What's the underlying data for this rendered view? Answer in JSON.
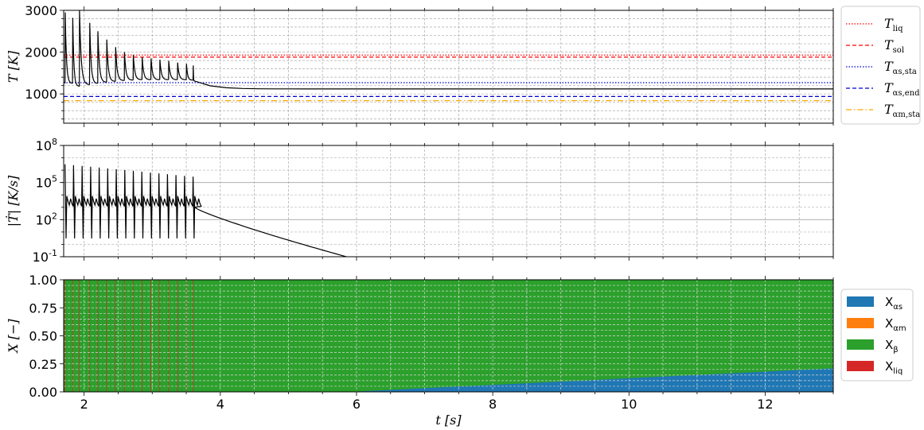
{
  "chart_data": [
    {
      "type": "line",
      "ylabel": "T [K]",
      "ylim": [
        300,
        3000
      ],
      "yscale": "linear",
      "xlim": [
        1.7,
        13.0
      ],
      "yticks": [
        {
          "v": 1000,
          "label": "1000"
        },
        {
          "v": 2000,
          "label": "2000"
        },
        {
          "v": 3000,
          "label": "3000"
        }
      ],
      "grid": true,
      "legend_position": "right",
      "hlines": [
        {
          "name": "T_liq",
          "label": "T_liq",
          "value": 1930,
          "color": "#ff0000",
          "style": "dotted"
        },
        {
          "name": "T_sol",
          "label": "T_sol",
          "value": 1880,
          "color": "#ff0000",
          "style": "dashed"
        },
        {
          "name": "T_as,sta",
          "label": "T_αs,sta",
          "value": 1270,
          "color": "#0000cc",
          "style": "dotted"
        },
        {
          "name": "T_as,end",
          "label": "T_αs,end",
          "value": 940,
          "color": "#0000cc",
          "style": "dashed"
        },
        {
          "name": "T_am,sta",
          "label": "T_αm,sta",
          "value": 840,
          "color": "#ffa500",
          "style": "dashdot"
        }
      ],
      "peaks": [
        {
          "t": 1.72,
          "peak": 2950,
          "min": 1250
        },
        {
          "t": 1.83,
          "peak": 2820,
          "min": 1180
        },
        {
          "t": 1.93,
          "peak": 3000,
          "min": 1220
        },
        {
          "t": 2.08,
          "peak": 2700,
          "min": 1250
        },
        {
          "t": 2.2,
          "peak": 2500,
          "min": 1280
        },
        {
          "t": 2.33,
          "peak": 2300,
          "min": 1300
        },
        {
          "t": 2.46,
          "peak": 2120,
          "min": 1320
        },
        {
          "t": 2.59,
          "peak": 2000,
          "min": 1330
        },
        {
          "t": 2.72,
          "peak": 1930,
          "min": 1340
        },
        {
          "t": 2.85,
          "peak": 1880,
          "min": 1340
        },
        {
          "t": 2.98,
          "peak": 1850,
          "min": 1340
        },
        {
          "t": 3.11,
          "peak": 1820,
          "min": 1340
        },
        {
          "t": 3.24,
          "peak": 1790,
          "min": 1340
        },
        {
          "t": 3.37,
          "peak": 1750,
          "min": 1340
        },
        {
          "t": 3.5,
          "peak": 1720,
          "min": 1330
        },
        {
          "t": 3.6,
          "peak": 1680,
          "min": 1310
        }
      ],
      "decay": {
        "t_start": 3.62,
        "T_start": 1310,
        "T_end": 1120,
        "t_settle": 4.6
      }
    },
    {
      "type": "line",
      "ylabel": "|Ṫ| [K/s]",
      "yscale": "log",
      "ylim": [
        0.1,
        100000000
      ],
      "xlim": [
        1.7,
        13.0
      ],
      "yticks": [
        {
          "v": 0.1,
          "base": "10",
          "exp": "-1"
        },
        {
          "v": 100,
          "base": "10",
          "exp": "2"
        },
        {
          "v": 100000,
          "base": "10",
          "exp": "5"
        },
        {
          "v": 100000000,
          "base": "10",
          "exp": "8"
        }
      ],
      "grid": true,
      "pulses": {
        "t_start": 1.72,
        "t_end": 3.6,
        "count": 16,
        "peak_high": 3000000,
        "peak_low": 300000,
        "baseline": 1000,
        "dip": 3
      },
      "decay": {
        "t_start": 3.62,
        "rate_start": 1000,
        "t_end": 5.85,
        "rate_end": 0.1
      }
    },
    {
      "type": "area",
      "ylabel": "X [−]",
      "xlabel": "t [s]",
      "ylim": [
        0.0,
        1.0
      ],
      "xlim": [
        1.7,
        13.0
      ],
      "yticks": [
        "0.00",
        "0.25",
        "0.50",
        "0.75",
        "1.00"
      ],
      "xticks": [
        {
          "v": 2,
          "label": "2"
        },
        {
          "v": 4,
          "label": "4"
        },
        {
          "v": 6,
          "label": "6"
        },
        {
          "v": 8,
          "label": "8"
        },
        {
          "v": 10,
          "label": "10"
        },
        {
          "v": 12,
          "label": "12"
        }
      ],
      "grid": true,
      "legend_position": "right",
      "series": [
        {
          "name": "X_αs",
          "label": "Xαs",
          "color": "#1f77b4",
          "x": [
            1.7,
            5.9,
            13.0
          ],
          "values": [
            0.0,
            0.0,
            0.21
          ]
        },
        {
          "name": "X_αm",
          "label": "Xαm",
          "color": "#ff7f0e",
          "x": [
            1.7,
            13.0
          ],
          "values": [
            0.0,
            0.0
          ]
        },
        {
          "name": "X_β",
          "label": "Xβ",
          "color": "#2ca02c",
          "x": [
            1.7,
            5.9,
            13.0
          ],
          "values": [
            1.0,
            1.0,
            0.79
          ]
        },
        {
          "name": "X_liq",
          "label": "Xliq",
          "color": "#d62728",
          "pulses_t": [
            1.72,
            1.83,
            1.93,
            2.08,
            2.2,
            2.33,
            2.46,
            2.59,
            2.72,
            2.85,
            2.98,
            3.11,
            3.24,
            3.37,
            3.5,
            3.6
          ]
        }
      ]
    }
  ]
}
